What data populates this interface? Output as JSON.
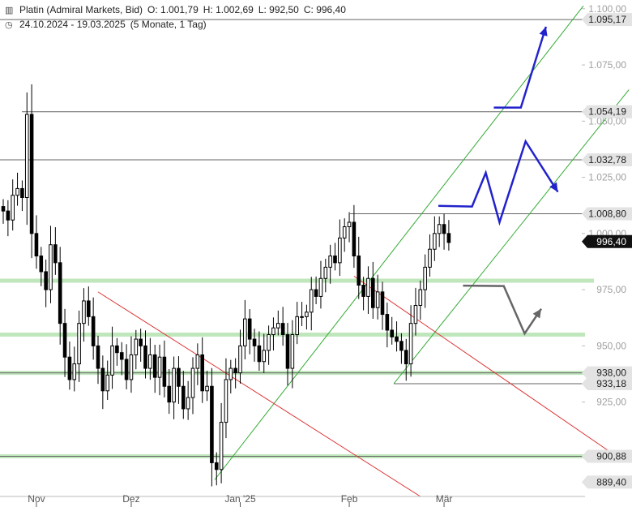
{
  "header": {
    "instrument": "Platin (Admiral Markets, Bid)",
    "open": "O: 1.001,79",
    "high": "H: 1.002,69",
    "low": "L: 992,50",
    "close": "C: 996,40",
    "range": "24.10.2024 - 19.03.2025",
    "period": "(5 Monate, 1 Tag)",
    "chart_icon": "candles-icon",
    "clock_icon": "clock-icon"
  },
  "chart_data": {
    "type": "candlestick",
    "title": "Platin (Admiral Markets, Bid)",
    "ylim": [
      883,
      1101
    ],
    "y_ticks": [
      {
        "value": 1100,
        "label": "1.100,00"
      },
      {
        "value": 1075,
        "label": "1.075,00"
      },
      {
        "value": 1050,
        "label": "1.050,00"
      },
      {
        "value": 1025,
        "label": "1.025,00"
      },
      {
        "value": 1000,
        "label": "1.000,00"
      },
      {
        "value": 975,
        "label": "975,00"
      },
      {
        "value": 950,
        "label": "950,00"
      },
      {
        "value": 925,
        "label": "925,00"
      }
    ],
    "x_ticks": [
      {
        "label": "Nov",
        "index": 7
      },
      {
        "label": "Dez",
        "index": 27
      },
      {
        "label": "Jan '25",
        "index": 50
      },
      {
        "label": "Feb",
        "index": 73
      },
      {
        "label": "Mär",
        "index": 93
      }
    ],
    "closes": [
      1010,
      1006,
      1017,
      1020,
      1016,
      1053,
      1000,
      990,
      983,
      975,
      995,
      987,
      960,
      945,
      935,
      942,
      960,
      970,
      963,
      950,
      940,
      930,
      937,
      950,
      947,
      944,
      935,
      946,
      953,
      950,
      940,
      946,
      936,
      945,
      932,
      925,
      940,
      932,
      922,
      927,
      940,
      946,
      930,
      932,
      898,
      895,
      916,
      935,
      940,
      938,
      950,
      962,
      953,
      950,
      943,
      948,
      955,
      958,
      960,
      955,
      940,
      955,
      963,
      963,
      965,
      975,
      972,
      980,
      985,
      990,
      987,
      998,
      1003,
      1005,
      990,
      977,
      972,
      980,
      967,
      974,
      964,
      957,
      954,
      952,
      948,
      942,
      960,
      968,
      975,
      985,
      993,
      1000,
      1004,
      1000,
      996
    ],
    "levels": [
      {
        "value": 1095.17,
        "label": "1.095,17",
        "style": "grey"
      },
      {
        "value": 1054.19,
        "label": "1.054,19",
        "style": "grey"
      },
      {
        "value": 1032.78,
        "label": "1.032,78",
        "style": "grey"
      },
      {
        "value": 1008.8,
        "label": "1.008,80",
        "style": "grey"
      },
      {
        "value": 996.4,
        "label": "996,40",
        "style": "current"
      },
      {
        "value": 938.0,
        "label": "938,00",
        "style": "grey"
      },
      {
        "value": 933.18,
        "label": "933,18",
        "style": "grey"
      },
      {
        "value": 900.88,
        "label": "900,88",
        "style": "grey"
      },
      {
        "value": 889.4,
        "label": "889,40",
        "style": "grey"
      }
    ],
    "colors": {
      "candle": "#000000",
      "support_zone": "#b5e3b0",
      "channel": "#33aa33",
      "downtrend": "#dd3333",
      "scenario_bull": "#2222cc",
      "scenario_alt": "#666666",
      "level_line": "#666666",
      "axis_text": "#a0a0a0"
    }
  }
}
